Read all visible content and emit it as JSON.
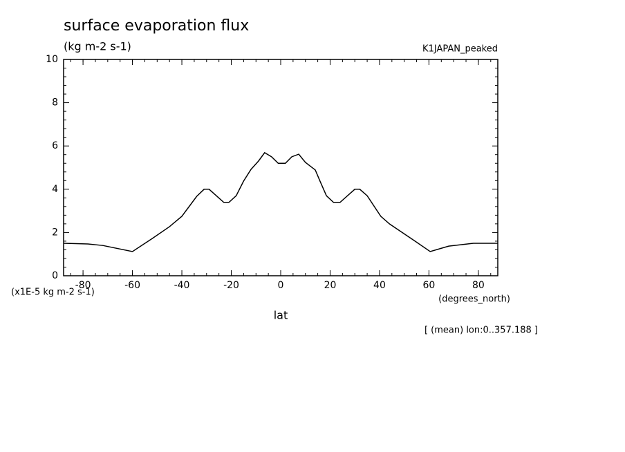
{
  "chart_data": {
    "type": "line",
    "title": "surface evaporation flux",
    "subtitle": "(kg m-2 s-1)",
    "annotation": "K1JAPAN_peaked",
    "ylabel": "(x1E-5 kg m-2 s-1)",
    "xunits": "(degrees_north)",
    "xlabel": "lat",
    "footnote": "[ (mean) lon:0..357.188 ]",
    "xlim": [
      -87.86,
      87.86
    ],
    "ylim": [
      0,
      10
    ],
    "xticks": [
      -80,
      -60,
      -40,
      -20,
      0,
      20,
      40,
      60,
      80
    ],
    "yticks": [
      0,
      2,
      4,
      6,
      8,
      10
    ],
    "x": [
      -87.86,
      -78,
      -72,
      -60,
      -52,
      -45,
      -40,
      -34,
      -31,
      -29,
      -23,
      -21,
      -18,
      -15,
      -12,
      -9,
      -6.5,
      -3.7,
      -1,
      1.9,
      4.5,
      7.3,
      10,
      14,
      16,
      18.5,
      21.4,
      24,
      30,
      32,
      35,
      40.5,
      44,
      54,
      60.5,
      68,
      78,
      87.86
    ],
    "series": [
      {
        "color": "#000000",
        "values": [
          1.5,
          1.47,
          1.4,
          1.12,
          1.72,
          2.27,
          2.75,
          3.67,
          4.0,
          4.0,
          3.39,
          3.39,
          3.7,
          4.38,
          4.92,
          5.3,
          5.69,
          5.5,
          5.2,
          5.2,
          5.5,
          5.62,
          5.24,
          4.89,
          4.35,
          3.7,
          3.39,
          3.39,
          4.0,
          4.0,
          3.7,
          2.75,
          2.4,
          1.63,
          1.12,
          1.37,
          1.5,
          1.5
        ]
      }
    ]
  }
}
